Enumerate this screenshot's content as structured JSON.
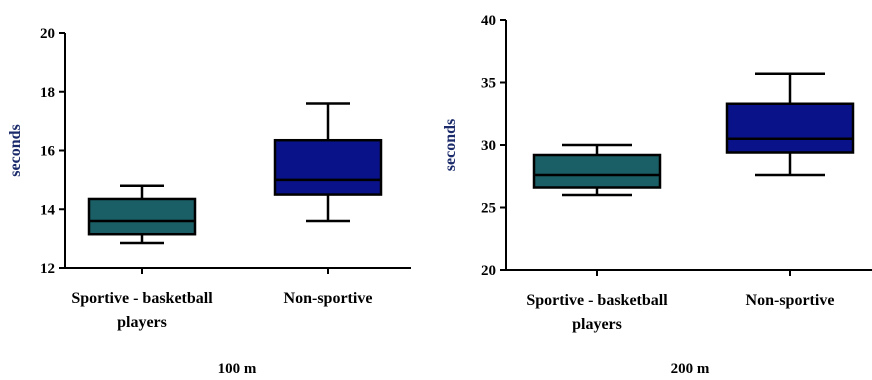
{
  "chart_data": [
    {
      "type": "boxplot",
      "title": "100 m",
      "ylabel": "seconds",
      "ylim": [
        12,
        20
      ],
      "yticks": [
        12,
        14,
        16,
        18,
        20
      ],
      "categories": [
        "Sportive - basketball players",
        "Non-sportive"
      ],
      "category_lines": [
        [
          "Sportive - basketball",
          "players"
        ],
        [
          "Non-sportive"
        ]
      ],
      "boxes": [
        {
          "min": 12.85,
          "q1": 13.15,
          "median": 13.6,
          "q3": 14.35,
          "max": 14.8,
          "color": "#1a5f66"
        },
        {
          "min": 13.6,
          "q1": 14.5,
          "median": 15.0,
          "q3": 16.35,
          "max": 17.6,
          "color": "#0a128a"
        }
      ]
    },
    {
      "type": "boxplot",
      "title": "200 m",
      "ylabel": "seconds",
      "ylim": [
        20,
        40
      ],
      "yticks": [
        20,
        25,
        30,
        35,
        40
      ],
      "categories": [
        "Sportive - basketball players",
        "Non-sportive"
      ],
      "category_lines": [
        [
          "Sportive - basketball",
          "players"
        ],
        [
          "Non-sportive"
        ]
      ],
      "boxes": [
        {
          "min": 26.0,
          "q1": 26.6,
          "median": 27.6,
          "q3": 29.2,
          "max": 30.0,
          "color": "#1a5f66"
        },
        {
          "min": 27.6,
          "q1": 29.4,
          "median": 30.5,
          "q3": 33.3,
          "max": 35.7,
          "color": "#0a128a"
        }
      ]
    }
  ]
}
